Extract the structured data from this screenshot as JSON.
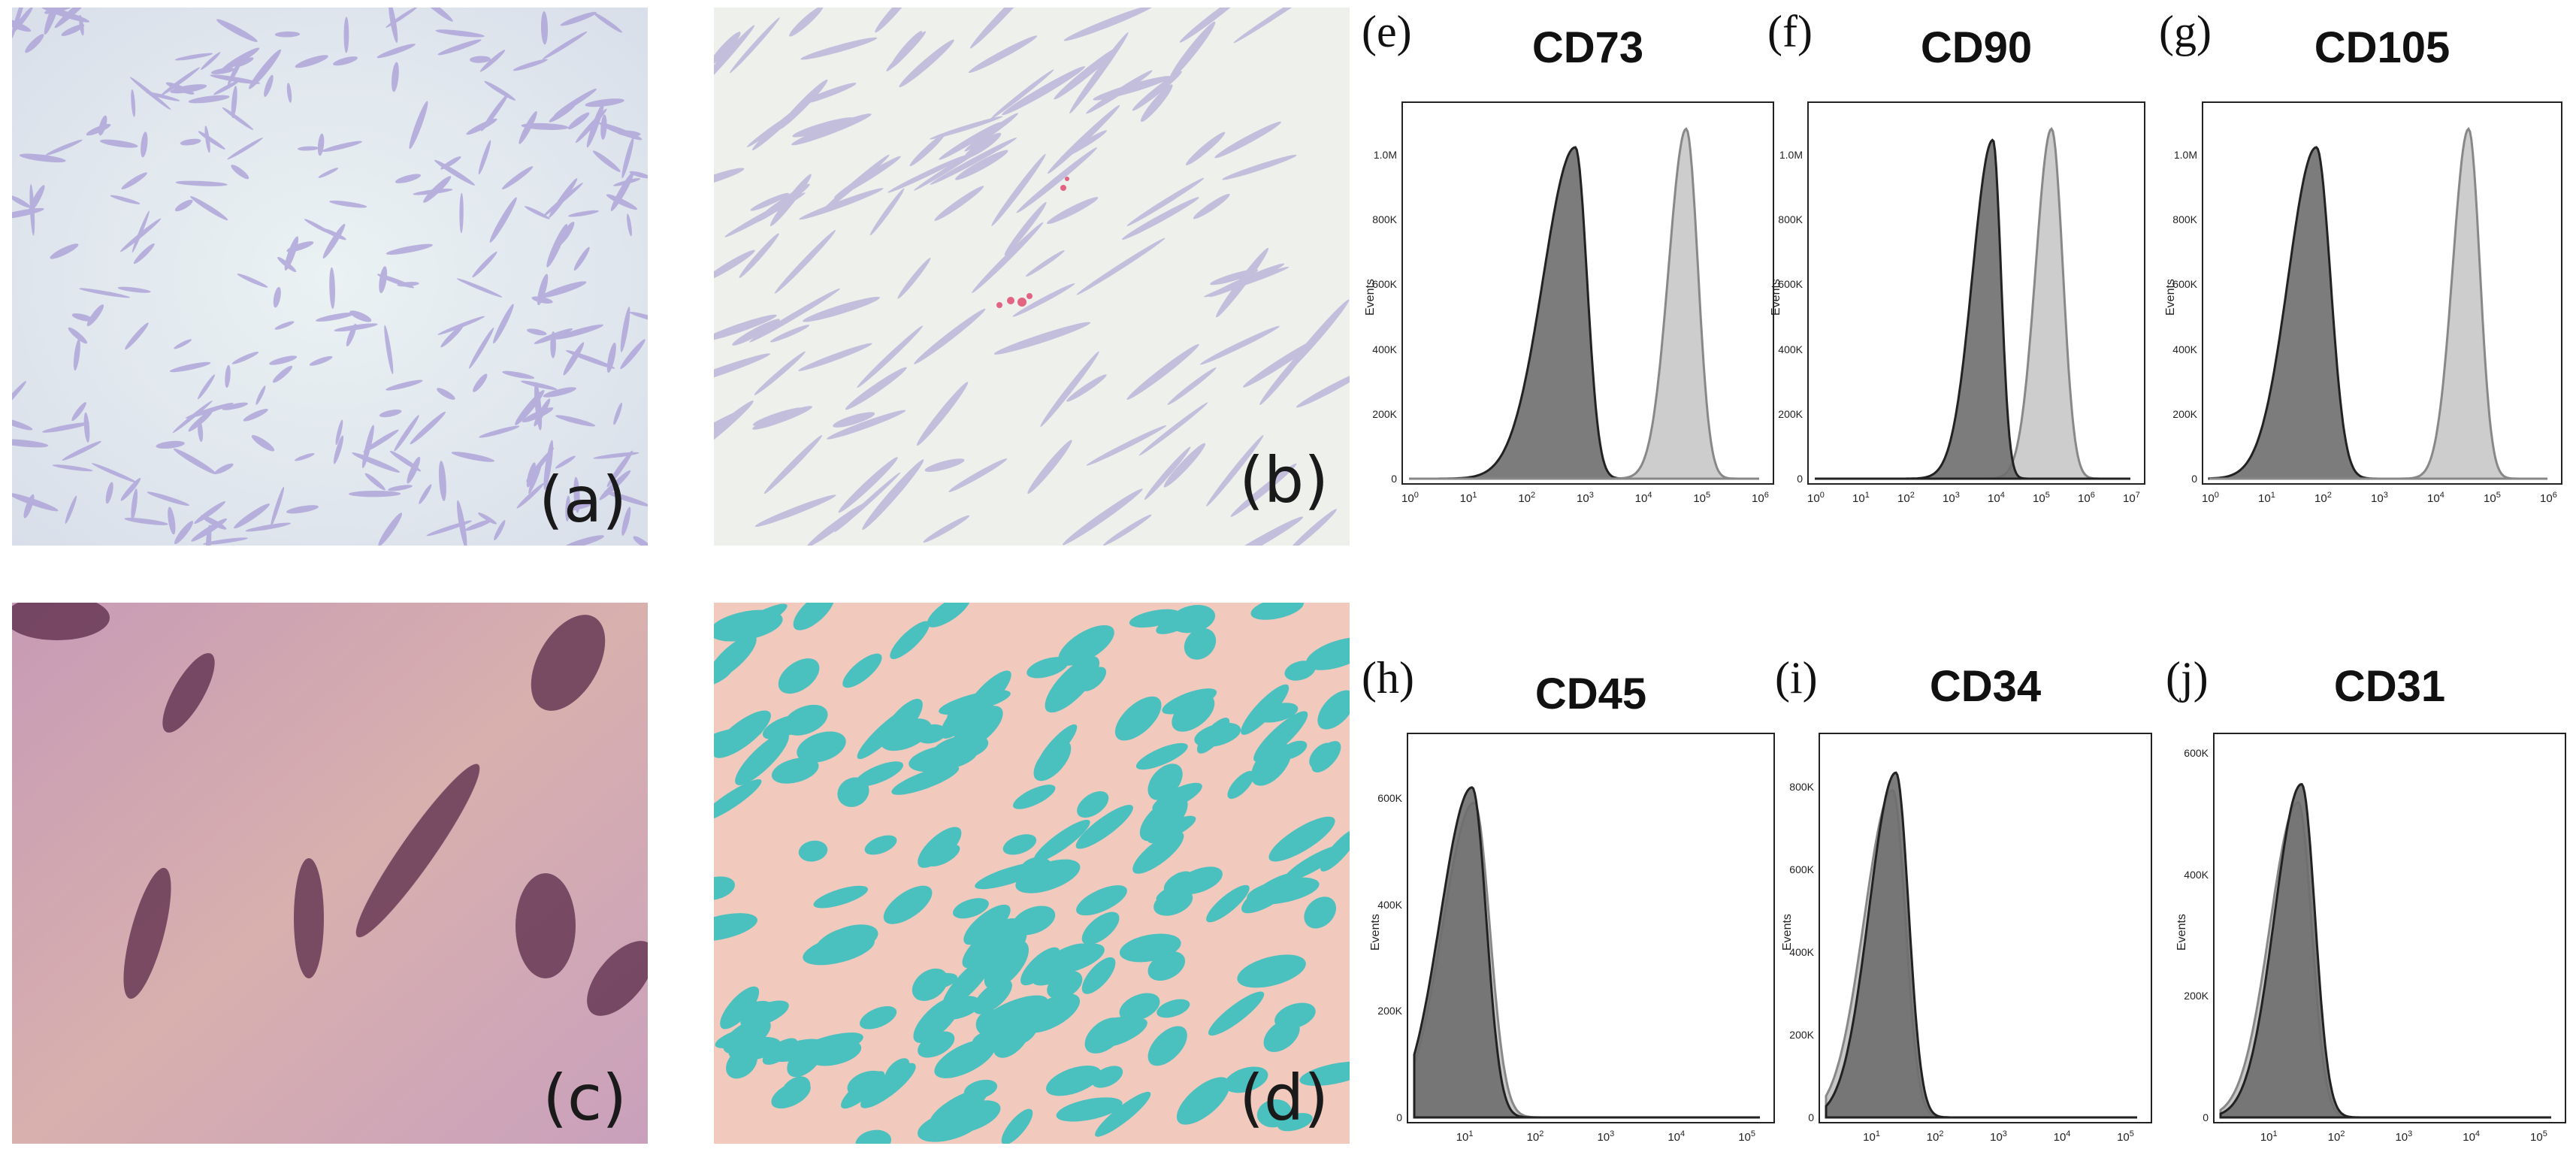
{
  "photos": [
    {
      "id": "a",
      "label": "(a)"
    },
    {
      "id": "b",
      "label": "(b)"
    },
    {
      "id": "c",
      "label": "(c)"
    },
    {
      "id": "d",
      "label": "(d)"
    }
  ],
  "axis": {
    "ylabel": "Events"
  },
  "chart_data": [
    {
      "panel": "(e)",
      "title": "CD73",
      "type": "area",
      "yticks": [
        "0",
        "200K",
        "400K",
        "600K",
        "800K",
        "1.0M"
      ],
      "xticks": [
        "0",
        "1",
        "2",
        "3",
        "4",
        "5",
        "6"
      ],
      "xlim_log10": [
        0,
        6
      ],
      "ylim": [
        0,
        1000000
      ],
      "series": [
        {
          "color": "#6e6e6e",
          "mode": 2.85,
          "peak": 900000,
          "left": 0.55,
          "right": 0.2
        },
        {
          "color": "#c8c8c8",
          "mode": 4.75,
          "peak": 950000,
          "left": 0.3,
          "right": 0.2
        }
      ]
    },
    {
      "panel": "(f)",
      "title": "CD90",
      "type": "area",
      "yticks": [
        "0",
        "200K",
        "400K",
        "600K",
        "800K",
        "1.0M"
      ],
      "xticks": [
        "0",
        "1",
        "2",
        "3",
        "4",
        "5",
        "6",
        "7"
      ],
      "xlim_log10": [
        0,
        7
      ],
      "ylim": [
        0,
        1000000
      ],
      "series": [
        {
          "color": "#c8c8c8",
          "mode": 5.25,
          "peak": 950000,
          "left": 0.35,
          "right": 0.25
        },
        {
          "color": "#6e6e6e",
          "mode": 3.95,
          "peak": 920000,
          "left": 0.45,
          "right": 0.18
        }
      ]
    },
    {
      "panel": "(g)",
      "title": "CD105",
      "type": "area",
      "yticks": [
        "0",
        "200K",
        "400K",
        "600K",
        "800K",
        "1.0M"
      ],
      "xticks": [
        "0",
        "1",
        "2",
        "3",
        "4",
        "5",
        "6"
      ],
      "xlim_log10": [
        0,
        6
      ],
      "ylim": [
        0,
        1000000
      ],
      "series": [
        {
          "color": "#6e6e6e",
          "mode": 1.9,
          "peak": 900000,
          "left": 0.5,
          "right": 0.25
        },
        {
          "color": "#c8c8c8",
          "mode": 4.6,
          "peak": 950000,
          "left": 0.28,
          "right": 0.2
        }
      ]
    },
    {
      "panel": "(h)",
      "title": "CD45",
      "type": "area",
      "yticks": [
        "0",
        "200K",
        "400K",
        "600K"
      ],
      "xticks": [
        "1",
        "2",
        "3",
        "4",
        "5"
      ],
      "xlim_log10": [
        0.3,
        5.2
      ],
      "ylim": [
        0,
        740000
      ],
      "series": [
        {
          "color": "#c0c0c0",
          "mode": 1.15,
          "peak": 620000,
          "left": 0.45,
          "right": 0.22
        },
        {
          "color": "#6e6e6e",
          "mode": 1.12,
          "peak": 650000,
          "left": 0.45,
          "right": 0.2
        }
      ]
    },
    {
      "panel": "(i)",
      "title": "CD34",
      "type": "area",
      "yticks": [
        "0",
        "200K",
        "400K",
        "600K",
        "800K"
      ],
      "xticks": [
        "1",
        "2",
        "3",
        "4",
        "5"
      ],
      "xlim_log10": [
        0.3,
        5.2
      ],
      "ylim": [
        0,
        850000
      ],
      "series": [
        {
          "color": "#c0c0c0",
          "mode": 1.35,
          "peak": 740000,
          "left": 0.45,
          "right": 0.2
        },
        {
          "color": "#6e6e6e",
          "mode": 1.4,
          "peak": 780000,
          "left": 0.42,
          "right": 0.2
        }
      ]
    },
    {
      "panel": "(j)",
      "title": "CD31",
      "type": "area",
      "yticks": [
        "0",
        "200K",
        "400K",
        "600K"
      ],
      "xticks": [
        "1",
        "2",
        "3",
        "4",
        "5"
      ],
      "xlim_log10": [
        0.3,
        5.2
      ],
      "ylim": [
        0,
        620000
      ],
      "series": [
        {
          "color": "#c0c0c0",
          "mode": 1.45,
          "peak": 520000,
          "left": 0.42,
          "right": 0.2
        },
        {
          "color": "#6e6e6e",
          "mode": 1.5,
          "peak": 550000,
          "left": 0.4,
          "right": 0.2
        }
      ]
    }
  ]
}
